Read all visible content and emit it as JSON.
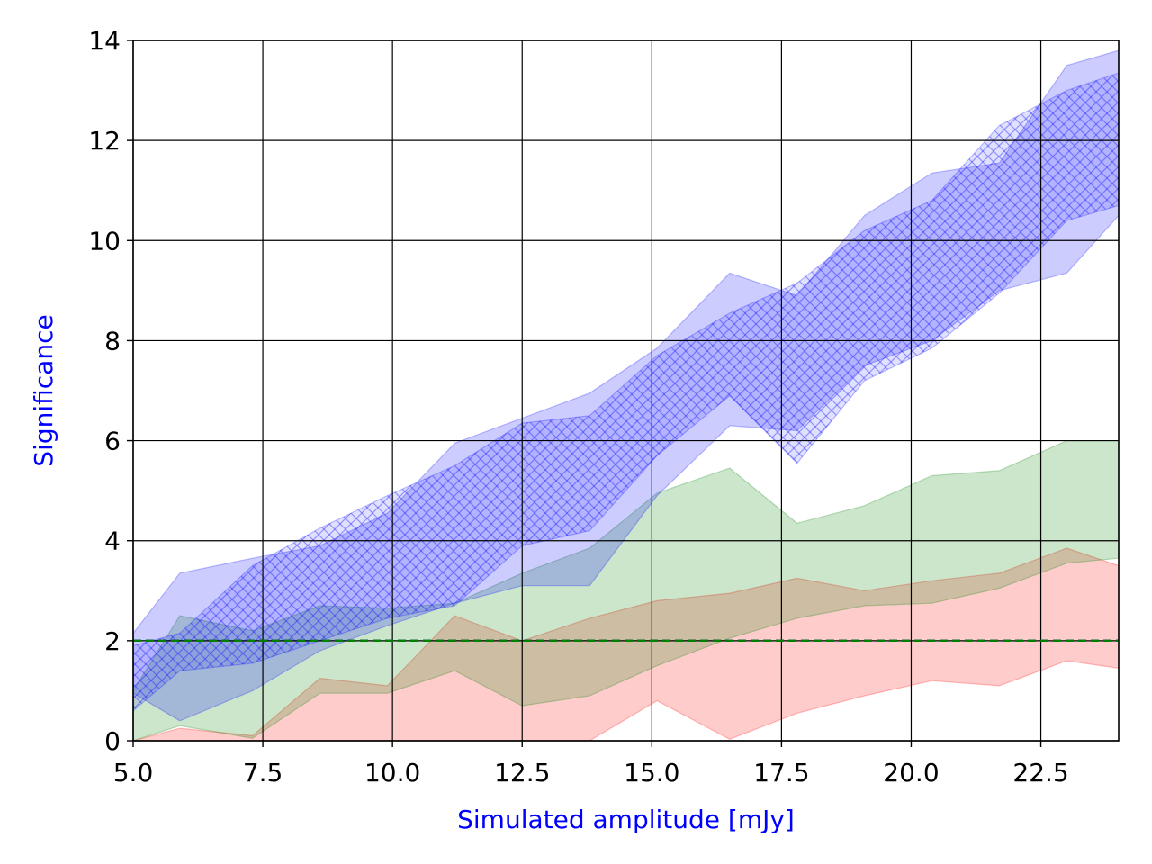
{
  "chart_data": {
    "type": "area",
    "title": "",
    "xlabel": "Simulated amplitude [mJy]",
    "ylabel": "Significance",
    "label_color": "#0000ff",
    "xlim": [
      5.0,
      24.0
    ],
    "ylim": [
      0,
      14
    ],
    "x_ticks": [
      "5.0",
      "7.5",
      "10.0",
      "12.5",
      "15.0",
      "17.5",
      "20.0",
      "22.5"
    ],
    "y_ticks": [
      "0",
      "2",
      "4",
      "6",
      "8",
      "10",
      "12",
      "14"
    ],
    "grid": true,
    "legend": "none",
    "threshold": {
      "y": 2,
      "colors": [
        "#0000ff",
        "#008000"
      ],
      "style": "dashed"
    },
    "x": [
      5.0,
      5.9,
      7.3,
      8.6,
      9.9,
      11.2,
      12.5,
      13.8,
      15.1,
      16.5,
      17.8,
      19.1,
      20.4,
      21.7,
      23.0,
      24.0
    ],
    "series": [
      {
        "color": "#ff0000",
        "hatch": false,
        "lower": [
          0.0,
          0.0,
          0.0,
          0.0,
          0.0,
          0.0,
          0.0,
          0.0,
          0.8,
          0.03,
          0.55,
          0.9,
          1.2,
          1.1,
          1.6,
          1.45
        ],
        "upper": [
          0.0,
          0.25,
          0.1,
          1.25,
          1.1,
          2.5,
          2.0,
          2.45,
          2.8,
          2.95,
          3.25,
          3.0,
          3.2,
          3.35,
          3.85,
          3.5
        ]
      },
      {
        "color": "#008000",
        "hatch": false,
        "lower": [
          0.0,
          0.3,
          0.05,
          0.95,
          0.95,
          1.4,
          0.7,
          0.9,
          1.5,
          2.05,
          2.45,
          2.7,
          2.75,
          3.05,
          3.55,
          3.65
        ],
        "upper": [
          1.0,
          2.5,
          2.2,
          2.7,
          2.65,
          2.75,
          3.35,
          3.85,
          4.95,
          5.45,
          4.35,
          4.7,
          5.3,
          5.4,
          6.0,
          6.0
        ]
      },
      {
        "color": "#0000ff",
        "hatch": false,
        "lower": [
          0.95,
          0.4,
          1.0,
          1.8,
          2.3,
          2.75,
          3.1,
          3.1,
          4.9,
          6.3,
          6.2,
          7.5,
          8.0,
          9.0,
          9.35,
          10.5
        ],
        "upper": [
          2.15,
          3.35,
          3.65,
          3.9,
          4.55,
          5.95,
          6.45,
          6.95,
          7.85,
          9.35,
          8.9,
          10.5,
          11.35,
          11.55,
          13.5,
          13.8
        ]
      },
      {
        "color": "#0000ff",
        "hatch": true,
        "lower": [
          0.6,
          1.4,
          1.55,
          2.0,
          2.45,
          2.7,
          3.9,
          4.2,
          5.7,
          6.9,
          5.55,
          7.2,
          7.85,
          8.95,
          10.4,
          10.7
        ],
        "upper": [
          1.9,
          2.15,
          3.5,
          4.25,
          4.9,
          5.5,
          6.35,
          6.5,
          7.7,
          8.55,
          9.15,
          10.2,
          10.8,
          12.3,
          13.0,
          13.35
        ]
      }
    ]
  }
}
